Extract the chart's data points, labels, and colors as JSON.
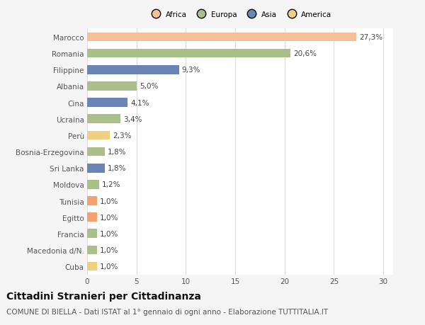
{
  "countries": [
    "Marocco",
    "Romania",
    "Filippine",
    "Albania",
    "Cina",
    "Ucraina",
    "Perù",
    "Bosnia-Erzegovina",
    "Sri Lanka",
    "Moldova",
    "Tunisia",
    "Egitto",
    "Francia",
    "Macedonia d/N.",
    "Cuba"
  ],
  "values": [
    27.3,
    20.6,
    9.3,
    5.0,
    4.1,
    3.4,
    2.3,
    1.8,
    1.8,
    1.2,
    1.0,
    1.0,
    1.0,
    1.0,
    1.0
  ],
  "labels": [
    "27,3%",
    "20,6%",
    "9,3%",
    "5,0%",
    "4,1%",
    "3,4%",
    "2,3%",
    "1,8%",
    "1,8%",
    "1,2%",
    "1,0%",
    "1,0%",
    "1,0%",
    "1,0%",
    "1,0%"
  ],
  "colors": [
    "#F5C09A",
    "#AABF8A",
    "#6A85B5",
    "#AABF8A",
    "#6A85B5",
    "#AABF8A",
    "#F0D080",
    "#AABF8A",
    "#6A85B5",
    "#AABF8A",
    "#F5A070",
    "#F5A070",
    "#AABF8A",
    "#AABF8A",
    "#F0D080"
  ],
  "legend_labels": [
    "Africa",
    "Europa",
    "Asia",
    "America"
  ],
  "legend_colors": [
    "#F5C09A",
    "#AABF8A",
    "#6A85B5",
    "#F0D080"
  ],
  "title": "Cittadini Stranieri per Cittadinanza",
  "subtitle": "COMUNE DI BIELLA - Dati ISTAT al 1° gennaio di ogni anno - Elaborazione TUTTITALIA.IT",
  "xticks": [
    0,
    5,
    10,
    15,
    20,
    25,
    30
  ],
  "xlim": [
    0,
    31
  ],
  "bg_color": "#f5f5f5",
  "plot_bg_color": "#ffffff",
  "grid_color": "#dddddd",
  "title_fontsize": 10,
  "subtitle_fontsize": 7.5,
  "label_fontsize": 7.5,
  "tick_fontsize": 7.5,
  "bar_height": 0.55
}
